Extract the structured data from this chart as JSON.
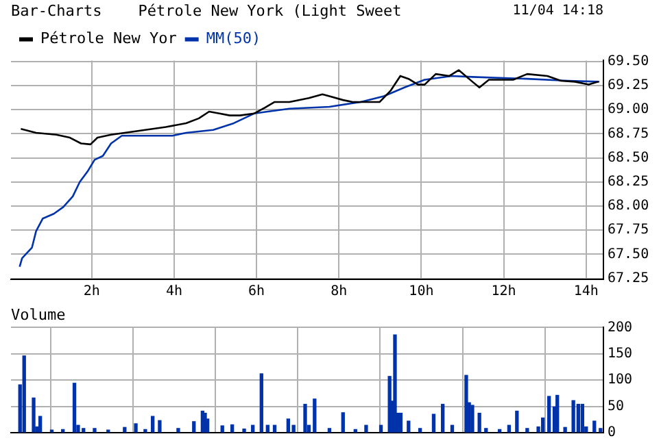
{
  "chart_data": [
    {
      "type": "line",
      "title": "Bar-Charts    Pétrole New York (Light Sweet",
      "annotations": [
        "11/04 14:18"
      ],
      "legend": "top left",
      "grid": true,
      "marker": "none",
      "line_style": "solid",
      "xlim": [
        0.04,
        14.42
      ],
      "xticks": [
        {
          "value": 2,
          "label": "2h"
        },
        {
          "value": 4,
          "label": "4h"
        },
        {
          "value": 6,
          "label": "6h"
        },
        {
          "value": 8,
          "label": "8h"
        },
        {
          "value": 10,
          "label": "10h"
        },
        {
          "value": 12,
          "label": "12h"
        },
        {
          "value": 14,
          "label": "14h"
        }
      ],
      "ylim": [
        67.24,
        69.51
      ],
      "yticks": [
        {
          "value": 67.25,
          "label": "67.25"
        },
        {
          "value": 67.5,
          "label": "67.50"
        },
        {
          "value": 67.75,
          "label": "67.75"
        },
        {
          "value": 68,
          "label": "68.00"
        },
        {
          "value": 68.25,
          "label": "68.25"
        },
        {
          "value": 68.5,
          "label": "68.50"
        },
        {
          "value": 68.75,
          "label": "68.75"
        },
        {
          "value": 69,
          "label": "69.00"
        },
        {
          "value": 69.25,
          "label": "69.25"
        },
        {
          "value": 69.5,
          "label": "69.50"
        }
      ],
      "series": [
        {
          "name": "Pétrole New Yor",
          "color": "#000000",
          "x": [
            0.28,
            0.65,
            1.14,
            1.47,
            1.74,
            1.97,
            2.14,
            2.47,
            2.8,
            3.3,
            3.8,
            4.29,
            4.6,
            4.85,
            5.1,
            5.35,
            5.6,
            5.94,
            6.2,
            6.44,
            6.8,
            7.27,
            7.6,
            7.77,
            8.1,
            8.33,
            8.76,
            8.99,
            9.26,
            9.49,
            9.69,
            9.92,
            10.08,
            10.35,
            10.68,
            10.91,
            11.24,
            11.41,
            11.64,
            12.23,
            12.57,
            13.06,
            13.39,
            13.73,
            14.06,
            14.29
          ],
          "values": [
            68.8,
            68.76,
            68.74,
            68.71,
            68.65,
            68.64,
            68.71,
            68.74,
            68.76,
            68.79,
            68.82,
            68.86,
            68.91,
            68.98,
            68.96,
            68.94,
            68.94,
            68.96,
            69.02,
            69.08,
            69.08,
            69.12,
            69.16,
            69.14,
            69.1,
            69.08,
            69.08,
            69.08,
            69.2,
            69.35,
            69.32,
            69.26,
            69.26,
            69.37,
            69.35,
            69.41,
            69.29,
            69.23,
            69.31,
            69.31,
            69.37,
            69.35,
            69.3,
            69.29,
            69.26,
            69.29
          ]
        },
        {
          "name": "MM(50)",
          "color": "#0033aa",
          "x": [
            0.25,
            0.31,
            0.55,
            0.65,
            0.81,
            1.08,
            1.31,
            1.54,
            1.71,
            1.9,
            2.07,
            2.27,
            2.47,
            2.73,
            3.96,
            4.29,
            4.95,
            5.45,
            5.94,
            6.27,
            6.8,
            7.77,
            8.53,
            9.09,
            9.59,
            10.08,
            10.74,
            11.24,
            12.57,
            13.56,
            14.32
          ],
          "values": [
            67.37,
            67.46,
            67.57,
            67.74,
            67.87,
            67.92,
            67.99,
            68.1,
            68.25,
            68.36,
            68.48,
            68.52,
            68.65,
            68.73,
            68.73,
            68.76,
            68.79,
            68.86,
            68.96,
            68.98,
            69.01,
            69.03,
            69.08,
            69.14,
            69.23,
            69.31,
            69.35,
            69.34,
            69.32,
            69.3,
            69.29
          ]
        }
      ]
    },
    {
      "type": "bar",
      "title": "Volume",
      "grid": true,
      "tick_labels": "y",
      "xlim": [
        0.04,
        14.42
      ],
      "xticks": [
        {
          "value": 2,
          "label": null
        },
        {
          "value": 4,
          "label": null
        },
        {
          "value": 6,
          "label": null
        },
        {
          "value": 8,
          "label": null
        },
        {
          "value": 10,
          "label": null
        },
        {
          "value": 12,
          "label": null
        },
        {
          "value": 14,
          "label": null
        }
      ],
      "ylim": [
        0,
        200
      ],
      "yticks": [
        0,
        50,
        100,
        150,
        200
      ],
      "series": [
        {
          "color": "#0033aa",
          "x": [
            0.26,
            0.36,
            0.59,
            0.67,
            0.75,
            1.03,
            1.3,
            1.58,
            1.67,
            1.8,
            2.07,
            2.4,
            2.8,
            3.07,
            3.3,
            3.48,
            3.65,
            4.1,
            4.48,
            4.69,
            4.75,
            4.81,
            5.17,
            5.41,
            5.7,
            5.91,
            6.12,
            6.27,
            6.44,
            6.77,
            6.9,
            7.18,
            7.27,
            7.41,
            7.77,
            8.1,
            8.4,
            8.66,
            9.02,
            9.23,
            9.29,
            9.36,
            9.43,
            9.5,
            9.69,
            9.97,
            10.3,
            10.52,
            10.75,
            11.09,
            11.16,
            11.24,
            11.41,
            11.57,
            11.9,
            12.13,
            12.32,
            12.57,
            12.84,
            12.95,
            13.1,
            13.23,
            13.3,
            13.49,
            13.69,
            13.81,
            13.91,
            14.0,
            14.2,
            14.35
          ],
          "values": [
            91,
            146,
            66,
            11,
            31,
            5,
            6,
            94,
            14,
            8,
            8,
            5,
            10,
            17,
            6,
            31,
            23,
            8,
            21,
            41,
            37,
            26,
            13,
            15,
            7,
            14,
            112,
            14,
            14,
            26,
            14,
            54,
            14,
            64,
            8,
            38,
            6,
            14,
            14,
            107,
            60,
            186,
            37,
            37,
            22,
            8,
            35,
            54,
            14,
            109,
            57,
            52,
            37,
            8,
            6,
            14,
            41,
            8,
            11,
            28,
            69,
            49,
            71,
            10,
            61,
            54,
            54,
            11,
            22,
            8
          ]
        }
      ]
    }
  ]
}
